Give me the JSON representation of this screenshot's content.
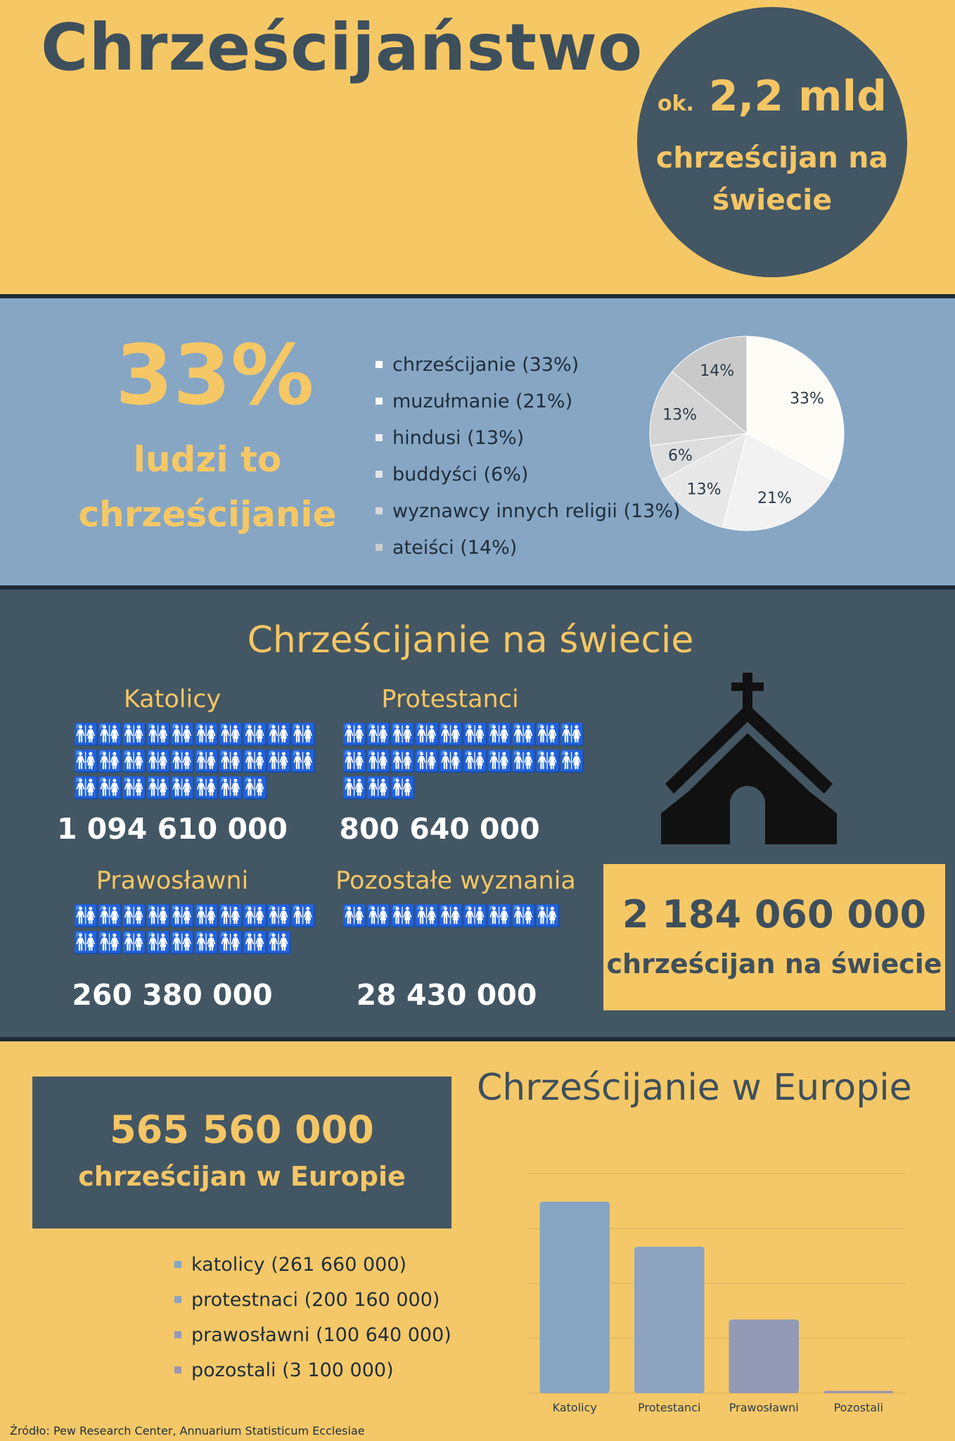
{
  "header": {
    "title": "Chrześcijaństwo",
    "circle_ok": "ok.",
    "circle_big": "2,2 mld",
    "circle_line2": "chrześcijan na",
    "circle_line3": "świecie"
  },
  "share": {
    "percent": "33%",
    "line1": "ludzi to",
    "line2": "chrześcijanie",
    "legend": [
      {
        "label": "chrześcijanie (33%)",
        "color": "#ffffff"
      },
      {
        "label": "muzułmanie (21%)",
        "color": "#f7f7f7"
      },
      {
        "label": "hindusi (13%)",
        "color": "#eeeeee"
      },
      {
        "label": "buddyści (6%)",
        "color": "#e4e4e4"
      },
      {
        "label": "wyznawcy innych religii (13%)",
        "color": "#d9d9d9"
      },
      {
        "label": "ateiści (14%)",
        "color": "#cccccc"
      }
    ]
  },
  "world": {
    "title": "Chrześcijanie na świecie",
    "groups": [
      {
        "label": "Katolicy",
        "value": "1 094 610 000"
      },
      {
        "label": "Protestanci",
        "value": "800 640 000"
      },
      {
        "label": "Prawosławni",
        "value": "260 380 000"
      },
      {
        "label": "Pozostałe wyznania",
        "value": "28 430 000"
      }
    ],
    "total": "2 184 060 000",
    "total_label": "chrześcijan na świecie",
    "icon": "church-icon"
  },
  "europe": {
    "total": "565 560 000",
    "total_label": "chrześcijan w Europie",
    "title": "Chrześcijanie w Europie",
    "legend": [
      {
        "label": "katolicy (261 660 000)",
        "color": "#86a6c4"
      },
      {
        "label": "protestnaci (200 160 000)",
        "color": "#8ea3c0"
      },
      {
        "label": "prawosławni (100 640 000)",
        "color": "#939ab6"
      },
      {
        "label": "pozostali (3 100 000)",
        "color": "#9c96b0"
      }
    ]
  },
  "source": "Źródło: Pew Research Center, Annuarium Statisticum Ecclesiae",
  "chart_data": [
    {
      "type": "pie",
      "title": "",
      "slices": [
        {
          "label": "chrześcijanie",
          "value": 33,
          "data_label": "33%",
          "color": "#fdfcf6"
        },
        {
          "label": "muzułmanie",
          "value": 21,
          "data_label": "21%",
          "color": "#f2f2f2"
        },
        {
          "label": "hindusi",
          "value": 13,
          "data_label": "13%",
          "color": "#e8e8e8"
        },
        {
          "label": "buddyści",
          "value": 6,
          "data_label": "6%",
          "color": "#dddddd"
        },
        {
          "label": "wyznawcy innych religii",
          "value": 13,
          "data_label": "13%",
          "color": "#d4d4d4"
        },
        {
          "label": "ateiści",
          "value": 14,
          "data_label": "14%",
          "color": "#c9c9c9"
        }
      ]
    },
    {
      "type": "bar",
      "title": "",
      "categories": [
        "Katolicy",
        "Protestanci",
        "Prawosławni",
        "Pozostali"
      ],
      "values": [
        261660000,
        200160000,
        100640000,
        3100000
      ],
      "colors": [
        "#86a6c4",
        "#8ea3c0",
        "#939ab6",
        "#9c96b0"
      ],
      "ylim": [
        0,
        300000000
      ],
      "grid": true
    }
  ]
}
